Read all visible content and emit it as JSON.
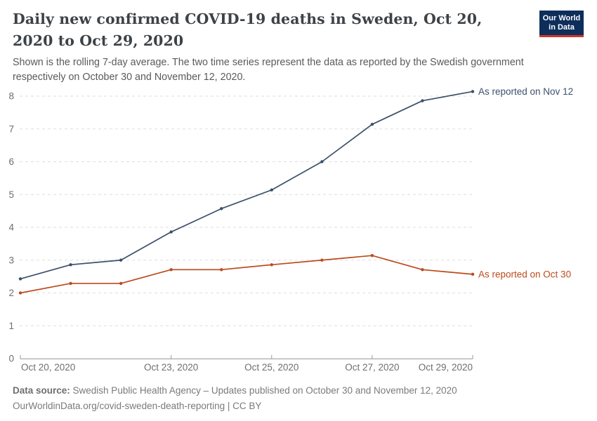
{
  "header": {
    "title": "Daily new confirmed COVID-19 deaths in Sweden, Oct 20, 2020 to Oct 29, 2020",
    "subtitle": "Shown is the rolling 7-day average. The two time series represent the data as reported by the Swedish government respectively on October 30 and November 12, 2020.",
    "logo": {
      "line1": "Our World",
      "line2": "in Data"
    }
  },
  "chart_data": {
    "type": "line",
    "title": "Daily new confirmed COVID-19 deaths in Sweden, Oct 20, 2020 to Oct 29, 2020",
    "xlabel": "",
    "ylabel": "",
    "x": [
      "Oct 20, 2020",
      "Oct 21, 2020",
      "Oct 22, 2020",
      "Oct 23, 2020",
      "Oct 24, 2020",
      "Oct 25, 2020",
      "Oct 26, 2020",
      "Oct 27, 2020",
      "Oct 28, 2020",
      "Oct 29, 2020"
    ],
    "x_tick_labels": [
      "Oct 20, 2020",
      "Oct 23, 2020",
      "Oct 25, 2020",
      "Oct 27, 2020",
      "Oct 29, 2020"
    ],
    "x_tick_indices": [
      0,
      3,
      5,
      7,
      9
    ],
    "ylim": [
      0,
      8
    ],
    "y_ticks": [
      0,
      1,
      2,
      3,
      4,
      5,
      6,
      7,
      8
    ],
    "grid": "horizontal-dashed",
    "legend_position": "end-of-line-labels",
    "series": [
      {
        "name": "As reported on Nov 12",
        "color": "#3c506b",
        "values": [
          2.43,
          2.86,
          3.0,
          3.86,
          4.57,
          5.14,
          6.0,
          7.14,
          7.86,
          8.14
        ]
      },
      {
        "name": "As reported on Oct 30",
        "color": "#bc4a1d",
        "values": [
          2.0,
          2.29,
          2.29,
          2.71,
          2.71,
          2.86,
          3.0,
          3.14,
          2.71,
          2.57
        ]
      }
    ]
  },
  "footer": {
    "source_label": "Data source:",
    "source_text": " Swedish Public Health Agency – Updates published on October 30 and November 12, 2020",
    "link": "OurWorldinData.org/covid-sweden-death-reporting",
    "separator": " | ",
    "license": "CC BY"
  },
  "colors": {
    "title": "#3d4246",
    "subtitle": "#5a5a5a",
    "axis_text": "#6e6e6e",
    "grid": "#dedede",
    "axis_line": "#9b9b9b",
    "logo_bg": "#0d2e5b",
    "logo_accent": "#d13328"
  }
}
